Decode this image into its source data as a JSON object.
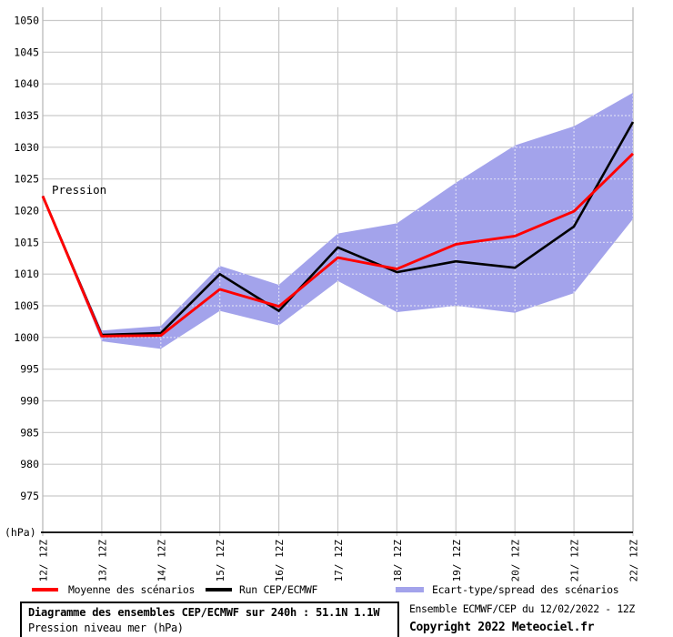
{
  "chart_data": {
    "type": "line",
    "inline_label": "Pression",
    "corner_unit_label": "(hPa)",
    "categories": [
      "12/ 12Z",
      "13/ 12Z",
      "14/ 12Z",
      "15/ 12Z",
      "16/ 12Z",
      "17/ 12Z",
      "18/ 12Z",
      "19/ 12Z",
      "20/ 12Z",
      "21/ 12Z",
      "22/ 12Z"
    ],
    "ylim": [
      975,
      1050
    ],
    "ytick_step": 5,
    "grid": true,
    "series": [
      {
        "name": "Run CEP/ECMWF",
        "color": "#000000",
        "values": [
          1022.3,
          1000.4,
          1000.7,
          1010.0,
          1004.2,
          1014.2,
          1010.3,
          1012.0,
          1011.0,
          1017.5,
          1034.0
        ]
      },
      {
        "name": "Moyenne des scénarios",
        "color": "#ff0000",
        "values": [
          1022.3,
          1000.2,
          1000.3,
          1007.6,
          1004.9,
          1012.6,
          1010.8,
          1014.7,
          1016.0,
          1019.9,
          1029.0
        ]
      }
    ],
    "band": {
      "name": "Ecart-type/spread des scénarios",
      "color": "#a3a3eb",
      "upper": [
        1022.5,
        1001.1,
        1001.8,
        1011.3,
        1008.3,
        1016.4,
        1018.0,
        1024.4,
        1030.3,
        1033.3,
        1038.6
      ],
      "lower": [
        1022.1,
        999.4,
        998.2,
        1004.2,
        1001.9,
        1008.9,
        1004.0,
        1005.0,
        1003.9,
        1007.0,
        1018.7
      ]
    },
    "colors": {
      "grid": "#c9c9c9",
      "grid_on_band": "#dcdcf4",
      "axis": "#000000",
      "border": "#bbbbbb",
      "text": "#000000"
    }
  },
  "legend": {
    "items": [
      {
        "label": "Moyenne des scénarios",
        "color": "#ff0000",
        "kind": "line"
      },
      {
        "label": "Run CEP/ECMWF",
        "color": "#000000",
        "kind": "line"
      },
      {
        "label": "Ecart-type/spread des scénarios",
        "color": "#a3a3eb",
        "kind": "band"
      }
    ]
  },
  "footer": {
    "title": "Diagramme des ensembles CEP/ECMWF sur 240h : 51.1N 1.1W",
    "subtitle": "Pression niveau mer (hPa)",
    "run_info": "Ensemble ECMWF/CEP du 12/02/2022 - 12Z",
    "copyright": "Copyright 2022 Meteociel.fr"
  }
}
